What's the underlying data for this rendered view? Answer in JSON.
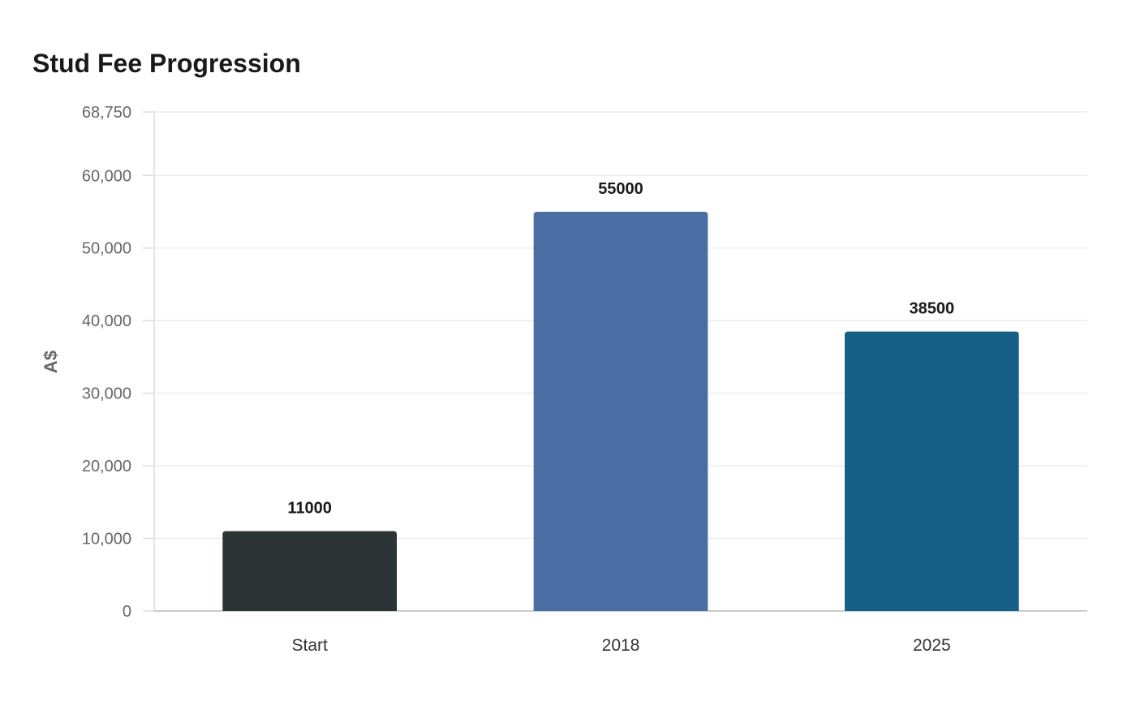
{
  "chart_data": {
    "type": "bar",
    "title": "Stud Fee Progression",
    "xlabel": "",
    "ylabel": "A$",
    "categories": [
      "Start",
      "2018",
      "2025"
    ],
    "values": [
      11000,
      55000,
      38500
    ],
    "colors": [
      "#2d3436",
      "#4a6da3",
      "#166087"
    ],
    "ylim": [
      0,
      68750
    ],
    "yticks": [
      0,
      10000,
      20000,
      30000,
      40000,
      50000,
      60000,
      68750
    ],
    "grid": true,
    "legend": "none"
  }
}
